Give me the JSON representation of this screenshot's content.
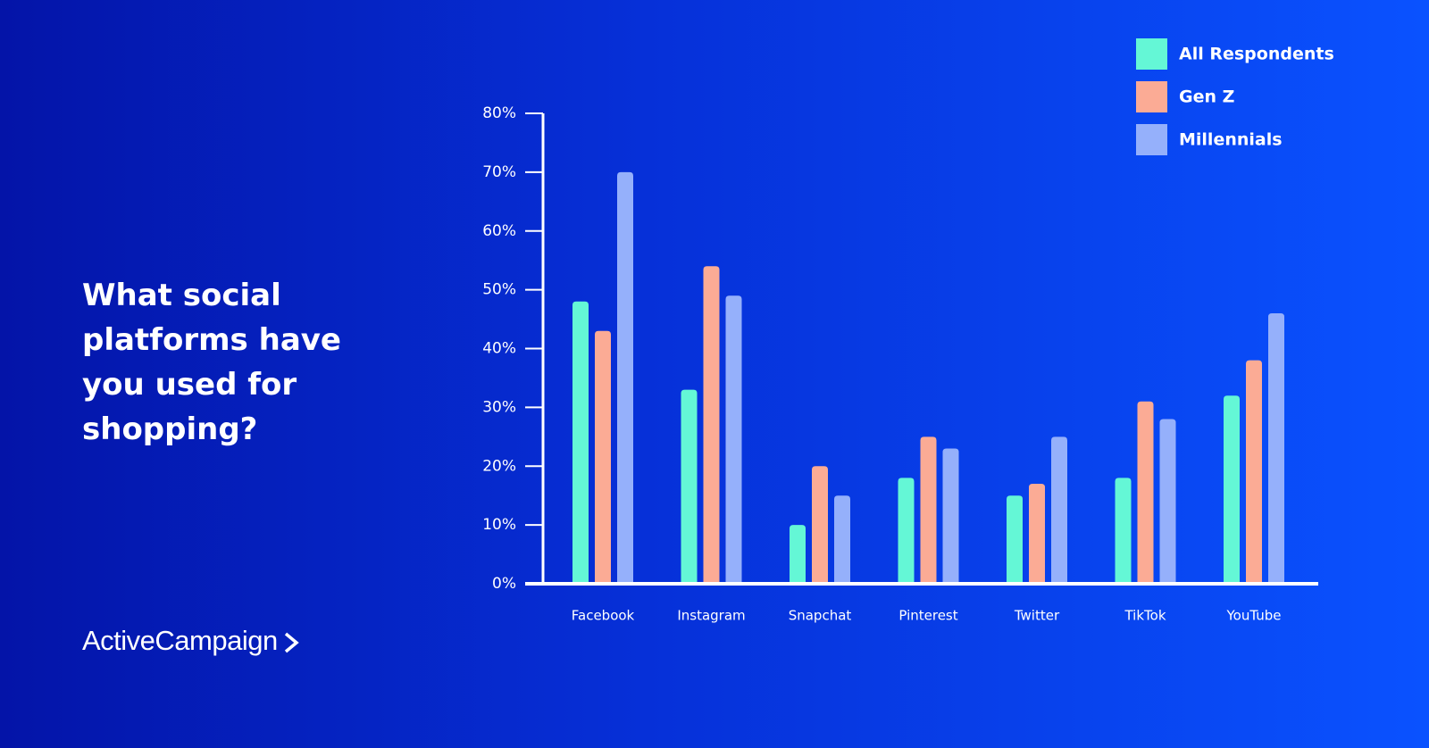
{
  "chart_data": {
    "type": "bar",
    "title": "What social platforms have you used for shopping?",
    "categories": [
      "Facebook",
      "Instagram",
      "Snapchat",
      "Pinterest",
      "Twitter",
      "TikTok",
      "YouTube"
    ],
    "series": [
      {
        "name": "All Respondents",
        "color": "#64f7d6",
        "values": [
          48,
          33,
          10,
          18,
          15,
          18,
          32
        ]
      },
      {
        "name": "Gen Z",
        "color": "#fbab95",
        "values": [
          43,
          54,
          20,
          25,
          17,
          31,
          38
        ]
      },
      {
        "name": "Millennials",
        "color": "#95b0fb",
        "values": [
          70,
          49,
          15,
          23,
          25,
          28,
          46
        ]
      }
    ],
    "ylim": [
      0,
      80
    ],
    "yticks": [
      {
        "value": 0,
        "label": "0%"
      },
      {
        "value": 10,
        "label": "10%"
      },
      {
        "value": 20,
        "label": "20%"
      },
      {
        "value": 30,
        "label": "30%"
      },
      {
        "value": 40,
        "label": "40%"
      },
      {
        "value": 50,
        "label": "50%"
      },
      {
        "value": 60,
        "label": "60%"
      },
      {
        "value": 70,
        "label": "70%"
      },
      {
        "value": 80,
        "label": "80%"
      }
    ],
    "legend": "top-right",
    "brand": "ActiveCampaign"
  }
}
